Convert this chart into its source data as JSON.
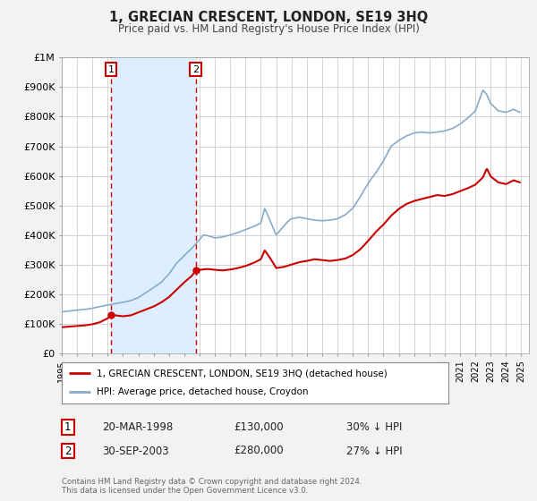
{
  "title": "1, GRECIAN CRESCENT, LONDON, SE19 3HQ",
  "subtitle": "Price paid vs. HM Land Registry's House Price Index (HPI)",
  "ylim": [
    0,
    1000000
  ],
  "xlim_start": 1995.0,
  "xlim_end": 2025.5,
  "bg_color": "#f2f2f2",
  "plot_bg_color": "#ffffff",
  "grid_color": "#cccccc",
  "red_line_color": "#cc0000",
  "blue_line_color": "#88aacc",
  "sale1_date_x": 1998.22,
  "sale1_price": 130000,
  "sale2_date_x": 2003.75,
  "sale2_price": 280000,
  "legend_label_red": "1, GRECIAN CRESCENT, LONDON, SE19 3HQ (detached house)",
  "legend_label_blue": "HPI: Average price, detached house, Croydon",
  "table_row1": [
    "1",
    "20-MAR-1998",
    "£130,000",
    "30% ↓ HPI"
  ],
  "table_row2": [
    "2",
    "30-SEP-2003",
    "£280,000",
    "27% ↓ HPI"
  ],
  "footnote": "Contains HM Land Registry data © Crown copyright and database right 2024.\nThis data is licensed under the Open Government Licence v3.0.",
  "shaded_region_color": "#ddeeff",
  "vline_color": "#cc0000",
  "ytick_labels": [
    "£0",
    "£100K",
    "£200K",
    "£300K",
    "£400K",
    "£500K",
    "£600K",
    "£700K",
    "£800K",
    "£900K",
    "£1M"
  ],
  "ytick_values": [
    0,
    100000,
    200000,
    300000,
    400000,
    500000,
    600000,
    700000,
    800000,
    900000,
    1000000
  ]
}
